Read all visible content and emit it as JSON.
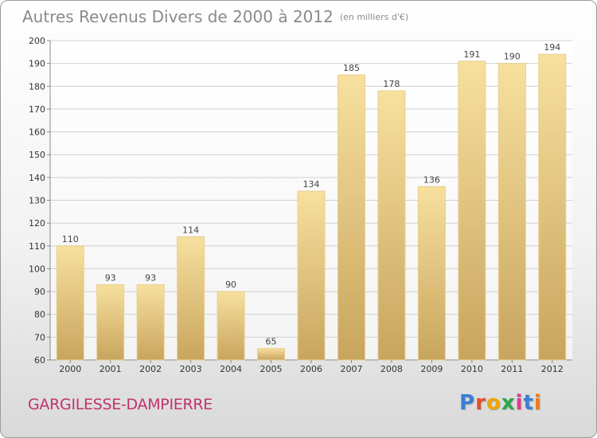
{
  "header": {
    "title": "Autres Revenus Divers de 2000 à 2012",
    "unit": "(en milliers d'€)"
  },
  "footer": {
    "place": "GARGILESSE-DAMPIERRE",
    "logo_letters": [
      "P",
      "r",
      "o",
      "x",
      "i",
      "t",
      "i"
    ],
    "logo_colors": [
      "#3a7fd5",
      "#e0502a",
      "#f0a500",
      "#2aa84a",
      "#e03a8a",
      "#3a7fd5",
      "#f07a1a"
    ]
  },
  "colors": {
    "bar_light": "#f5dc9a",
    "bar_dark": "#c9a860",
    "grid": "#d0d0d0"
  },
  "chart_data": {
    "type": "bar",
    "title": "Autres Revenus Divers de 2000 à 2012",
    "subtitle": "(en milliers d'€)",
    "xlabel": "",
    "ylabel": "",
    "categories": [
      "2000",
      "2001",
      "2002",
      "2003",
      "2004",
      "2005",
      "2006",
      "2007",
      "2008",
      "2009",
      "2010",
      "2011",
      "2012"
    ],
    "values": [
      110,
      93,
      93,
      114,
      90,
      65,
      134,
      185,
      178,
      136,
      191,
      190,
      194
    ],
    "ylim": [
      60,
      200
    ],
    "yticks": [
      60,
      70,
      80,
      90,
      100,
      110,
      120,
      130,
      140,
      150,
      160,
      170,
      180,
      190,
      200
    ],
    "grid": true,
    "legend": "none"
  }
}
